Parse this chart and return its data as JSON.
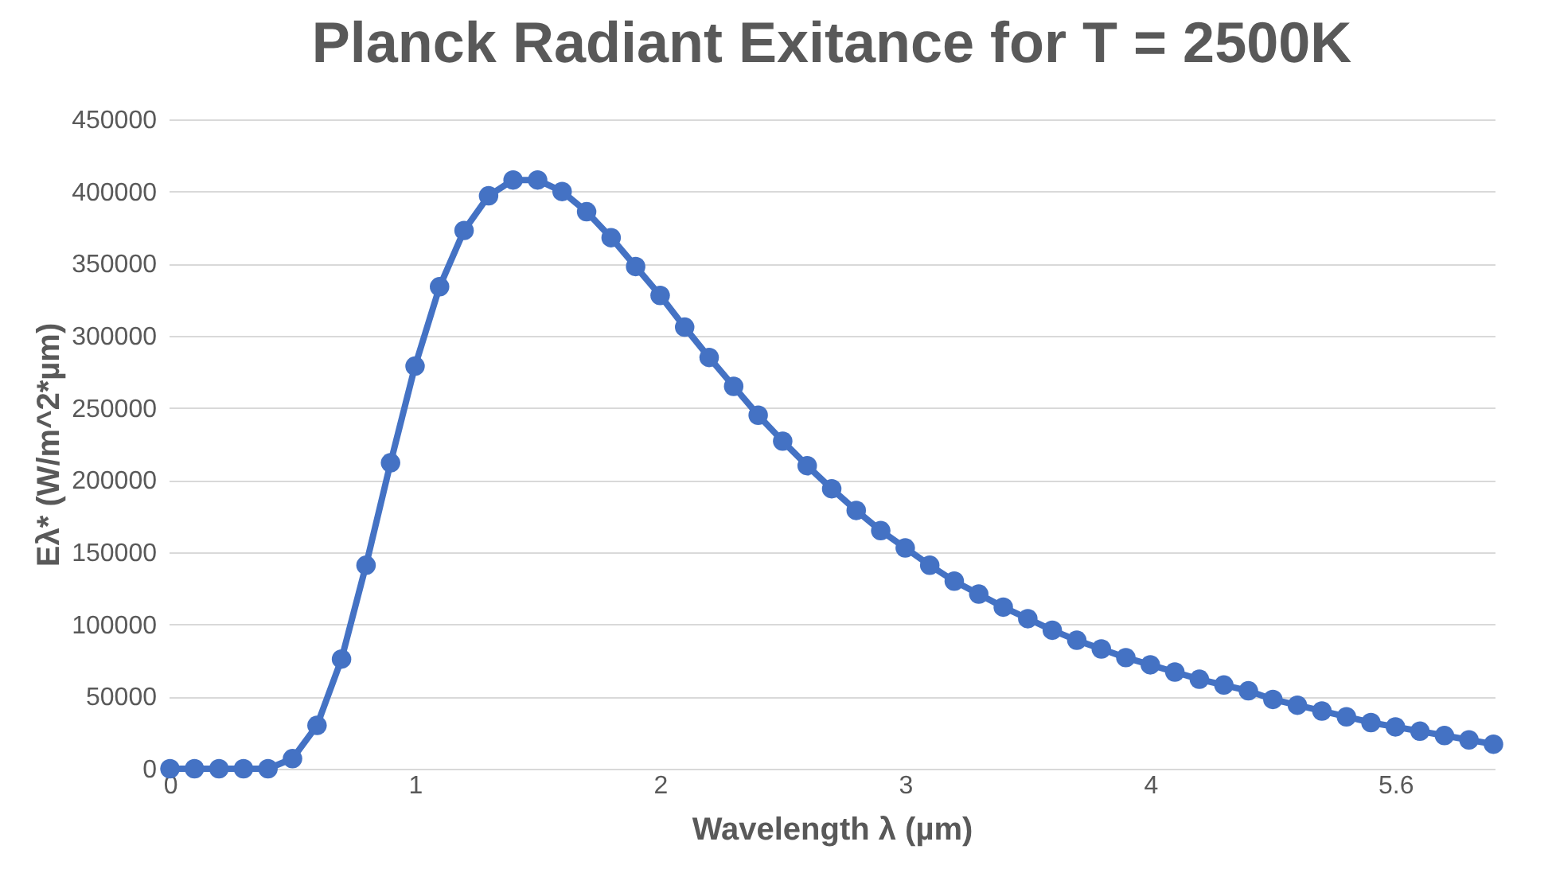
{
  "chart_data": {
    "type": "line",
    "title": "Planck Radiant Exitance for T = 2500K",
    "xlabel": "Wavelength λ (µm)",
    "ylabel": "Eλ* (W/m^2*µm)",
    "categories": [
      "0",
      null,
      null,
      null,
      null,
      null,
      null,
      null,
      null,
      null,
      "1",
      null,
      null,
      null,
      null,
      null,
      null,
      null,
      null,
      null,
      "2",
      null,
      null,
      null,
      null,
      null,
      null,
      null,
      null,
      null,
      "3",
      null,
      null,
      null,
      null,
      null,
      null,
      null,
      null,
      null,
      "4",
      null,
      null,
      null,
      null,
      null,
      null,
      null,
      null,
      null,
      "5.6",
      null,
      null,
      null,
      null
    ],
    "series": [
      {
        "color": "#4472c4",
        "values": [
          0,
          0,
          0,
          0,
          0,
          7000,
          30000,
          76000,
          141000,
          212000,
          279000,
          334000,
          373000,
          397000,
          408000,
          408000,
          400000,
          386000,
          368000,
          348000,
          328000,
          306000,
          285000,
          265000,
          245000,
          227000,
          210000,
          194000,
          179000,
          165000,
          153000,
          141000,
          130000,
          121000,
          112000,
          104000,
          96000,
          89000,
          83000,
          77000,
          72000,
          67000,
          62000,
          58000,
          54000,
          48000,
          44000,
          40000,
          36000,
          32000,
          29000,
          26000,
          23000,
          20000,
          17000
        ]
      }
    ],
    "ylim": [
      0,
      450000
    ],
    "yticks": [
      0,
      50000,
      100000,
      150000,
      200000,
      250000,
      300000,
      350000,
      400000,
      450000
    ],
    "grid": "y",
    "marker": "circle",
    "line_style": "solid"
  }
}
